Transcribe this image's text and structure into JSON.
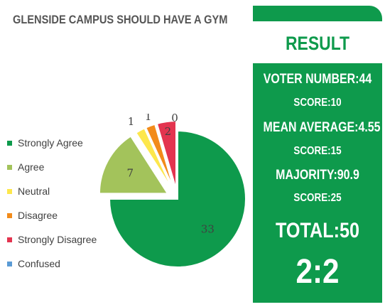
{
  "title": "GLENSIDE CAMPUS SHOULD HAVE A GYM",
  "chart_data": {
    "type": "pie",
    "title": "GLENSIDE CAMPUS SHOULD HAVE A GYM",
    "series": [
      {
        "name": "Strongly Agree",
        "value": 33,
        "color": "#0e9a4c"
      },
      {
        "name": "Agree",
        "value": 7,
        "color": "#a3c35b"
      },
      {
        "name": "Neutral",
        "value": 1,
        "color": "#fde74c"
      },
      {
        "name": "Disagree",
        "value": 1,
        "color": "#f28b1a"
      },
      {
        "name": "Strongly Disagree",
        "value": 2,
        "color": "#e3344f"
      },
      {
        "name": "Confused",
        "value": 0,
        "color": "#5b9bd5"
      }
    ],
    "legend_position": "left",
    "exploded": true
  },
  "result": {
    "heading": "RESULT",
    "voter_number": "VOTER NUMBER:44",
    "score_1": "SCORE:10",
    "mean_average": "MEAN AVERAGE:4.55",
    "score_2": "SCORE:15",
    "majority": "MAJORITY:90.9",
    "score_3": "SCORE:25",
    "total": "TOTAL:50",
    "ratio": "2:2",
    "accent_color": "#0e9a4c"
  }
}
